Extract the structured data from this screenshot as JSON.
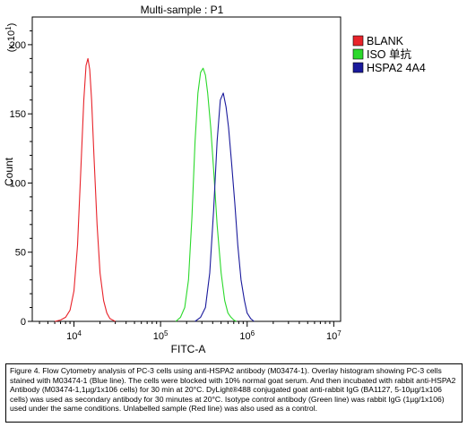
{
  "chart_data": {
    "type": "line",
    "title": "Multi-sample : P1",
    "xlabel": "FITC-A",
    "ylabel": "Count",
    "y_multiplier_label": "(x 10",
    "y_multiplier_exp": "1",
    "y_multiplier_close": ")",
    "xscale": "log",
    "xlim": [
      4000000,
      12000000
    ],
    "ylim": [
      0,
      220
    ],
    "x_tick_labels": [
      {
        "value": 10000,
        "base": "10",
        "exp": "4"
      },
      {
        "value": 100000,
        "base": "10",
        "exp": "5"
      },
      {
        "value": 1000000,
        "base": "10",
        "exp": "6"
      },
      {
        "value": 10000000,
        "base": "10",
        "exp": "7"
      }
    ],
    "y_ticks": [
      0,
      50,
      100,
      150,
      200
    ],
    "y_tick_labels": [
      "0",
      "50",
      "100",
      "150",
      "200"
    ],
    "grid": false,
    "legend_position": "right",
    "series": [
      {
        "name": "BLANK",
        "color": "#e8232a",
        "x": [
          6000,
          7000,
          8000,
          9000,
          10000,
          11000,
          12000,
          13000,
          13800,
          14500,
          15200,
          16000,
          17000,
          18500,
          20000,
          22000,
          24000,
          26000,
          28000,
          30000
        ],
        "y": [
          0,
          1,
          3,
          8,
          22,
          55,
          110,
          160,
          185,
          190,
          182,
          160,
          120,
          70,
          35,
          15,
          6,
          2,
          1,
          0
        ]
      },
      {
        "name": "ISO 单抗",
        "color": "#2bd92b",
        "x": [
          150000,
          170000,
          190000,
          210000,
          230000,
          250000,
          270000,
          290000,
          310000,
          330000,
          350000,
          380000,
          410000,
          450000,
          500000,
          550000,
          600000,
          650000,
          700000,
          750000
        ],
        "y": [
          0,
          3,
          10,
          30,
          75,
          130,
          165,
          180,
          183,
          178,
          165,
          140,
          110,
          70,
          35,
          15,
          6,
          3,
          1,
          0
        ]
      },
      {
        "name": "HSPA2 4A4",
        "color": "#1a1a9c",
        "x": [
          250000,
          290000,
          330000,
          370000,
          410000,
          450000,
          490000,
          530000,
          570000,
          610000,
          660000,
          720000,
          780000,
          850000,
          930000,
          1000000,
          1100000,
          1200000
        ],
        "y": [
          0,
          3,
          10,
          35,
          80,
          130,
          160,
          165,
          155,
          140,
          115,
          85,
          55,
          30,
          15,
          6,
          2,
          0
        ]
      }
    ]
  },
  "caption": {
    "text": "Figure 4. Flow Cytometry analysis of PC-3 cells using anti-HSPA2 antibody (M03474-1).  Overlay histogram showing PC-3 cells stained with M03474-1 (Blue line). The cells were blocked with 10% normal goat serum.  And then incubated with rabbit anti-HSPA2 Antibody (M03474-1,1µg/1x106 cells) for 30 min at 20°C. DyLight®488 conjugated goat anti-rabbit IgG (BA1127, 5-10µg/1x106 cells) was used as secondary antibody for 30 minutes at 20°C. Isotype control antibody (Green line) was rabbit IgG (1µg/1x106) used under the same conditions. Unlabelled sample (Red line) was also used as a control."
  }
}
